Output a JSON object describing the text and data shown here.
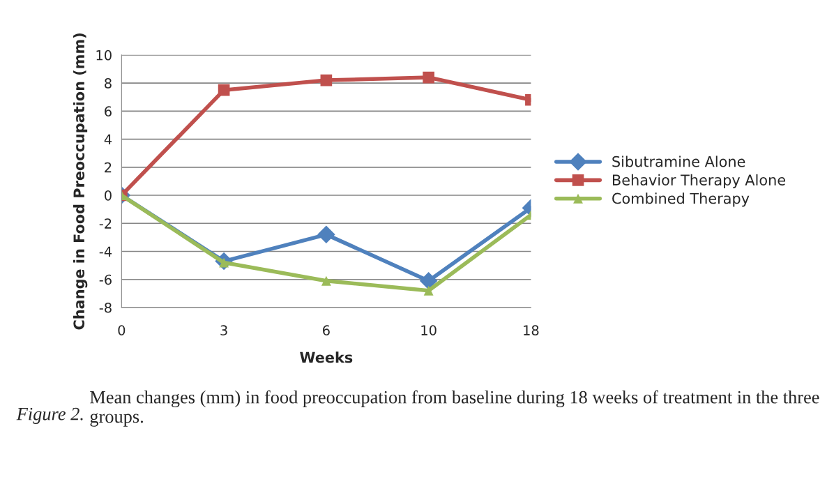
{
  "chart_data": {
    "type": "line",
    "xlabel": "Weeks",
    "ylabel": "Change in Food Preoccupation (mm)",
    "categories": [
      "0",
      "3",
      "6",
      "10",
      "18"
    ],
    "series": [
      {
        "name": "Sibutramine Alone",
        "color": "#4f81bd",
        "marker": "diamond",
        "values": [
          0,
          -4.7,
          -2.8,
          -6.1,
          -0.9
        ]
      },
      {
        "name": "Behavior Therapy Alone",
        "color": "#c0504d",
        "marker": "square",
        "values": [
          0,
          7.5,
          8.2,
          8.4,
          6.8
        ]
      },
      {
        "name": "Combined Therapy",
        "color": "#9bbb59",
        "marker": "triangle",
        "values": [
          0,
          -4.8,
          -6.1,
          -6.8,
          -1.4
        ]
      }
    ],
    "ylim": [
      -8,
      10
    ],
    "yticks": [
      -8,
      -6,
      -4,
      -2,
      0,
      2,
      4,
      6,
      8,
      10
    ],
    "grid": "y",
    "legend": "right",
    "annotations": [
      "Figure 2.",
      "Mean changes (mm) in food preoccupation from baseline during 18 weeks of treatment in the three groups."
    ]
  }
}
